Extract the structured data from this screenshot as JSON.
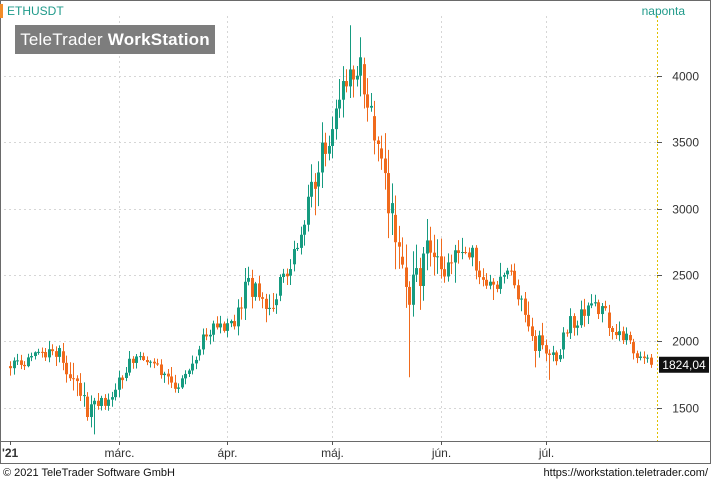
{
  "header": {
    "symbol": "ETHUSDT",
    "period": "naponta",
    "logo_regular": "TeleTrader",
    "logo_bold": "WorkStation"
  },
  "footer": {
    "copyright": "© 2021 TeleTrader Software GmbH",
    "url": "https://workstation.teletrader.com/"
  },
  "colors": {
    "up": "#169b80",
    "down": "#f06a1c",
    "grid": "#d6d6d6",
    "price_tag_bg": "#111111"
  },
  "chart_data": {
    "type": "candlestick",
    "title": "ETHUSDT",
    "interval": "naponta",
    "x_tick_labels": [
      "'21",
      "márc.",
      "ápr.",
      "máj.",
      "jún.",
      "júl."
    ],
    "y_ticks": [
      1500,
      2000,
      2500,
      3000,
      3500,
      4000
    ],
    "ylim": [
      1250,
      4450
    ],
    "last_price_label": "1824,04",
    "grid": true,
    "anchors": [
      [
        0,
        1770,
        1880
      ],
      [
        4,
        1800,
        1880
      ],
      [
        8,
        1880,
        1940
      ],
      [
        12,
        1810,
        1950
      ],
      [
        14,
        1870,
        1960
      ],
      [
        16,
        1740,
        1860
      ],
      [
        18,
        1580,
        1800
      ],
      [
        20,
        1480,
        1660
      ],
      [
        22,
        1400,
        1560
      ],
      [
        24,
        1460,
        1580
      ],
      [
        26,
        1510,
        1600
      ],
      [
        28,
        1490,
        1610
      ],
      [
        30,
        1580,
        1740
      ],
      [
        32,
        1700,
        1810
      ],
      [
        34,
        1780,
        1880
      ],
      [
        36,
        1840,
        1920
      ],
      [
        38,
        1840,
        1890
      ],
      [
        40,
        1800,
        1880
      ],
      [
        42,
        1760,
        1830
      ],
      [
        44,
        1720,
        1820
      ],
      [
        46,
        1600,
        1720
      ],
      [
        48,
        1630,
        1720
      ],
      [
        50,
        1700,
        1780
      ],
      [
        52,
        1790,
        1900
      ],
      [
        54,
        1910,
        2010
      ],
      [
        56,
        1990,
        2110
      ],
      [
        58,
        2060,
        2150
      ],
      [
        60,
        2040,
        2140
      ],
      [
        62,
        2080,
        2160
      ],
      [
        64,
        2100,
        2180
      ],
      [
        66,
        2160,
        2420
      ],
      [
        68,
        2300,
        2560
      ],
      [
        70,
        2340,
        2450
      ],
      [
        72,
        2280,
        2420
      ],
      [
        74,
        2100,
        2300
      ],
      [
        76,
        2300,
        2480
      ],
      [
        78,
        2430,
        2530
      ],
      [
        80,
        2520,
        2690
      ],
      [
        82,
        2680,
        2770
      ],
      [
        84,
        2740,
        2950
      ],
      [
        86,
        2930,
        3270
      ],
      [
        88,
        3220,
        3580
      ],
      [
        90,
        3400,
        3580
      ],
      [
        92,
        3480,
        3660
      ],
      [
        94,
        3650,
        3950
      ],
      [
        96,
        3800,
        4180
      ],
      [
        98,
        3900,
        4150
      ],
      [
        100,
        3900,
        4180
      ],
      [
        102,
        3700,
        3920
      ],
      [
        104,
        3420,
        3660
      ],
      [
        106,
        3200,
        3420
      ],
      [
        108,
        2800,
        3250
      ],
      [
        110,
        2550,
        2900
      ],
      [
        112,
        2350,
        2600
      ],
      [
        114,
        2050,
        2420
      ],
      [
        116,
        2300,
        2620
      ],
      [
        118,
        2440,
        2720
      ],
      [
        120,
        2620,
        2880
      ],
      [
        122,
        2440,
        2760
      ],
      [
        124,
        2320,
        2560
      ],
      [
        126,
        2380,
        2680
      ],
      [
        128,
        2620,
        2880
      ],
      [
        130,
        2660,
        2790
      ],
      [
        132,
        2580,
        2760
      ],
      [
        134,
        2460,
        2650
      ],
      [
        136,
        2380,
        2560
      ],
      [
        138,
        2300,
        2500
      ],
      [
        140,
        2420,
        2600
      ],
      [
        142,
        2520,
        2620
      ],
      [
        144,
        2360,
        2520
      ],
      [
        146,
        2220,
        2380
      ],
      [
        148,
        2100,
        2280
      ],
      [
        150,
        1890,
        2100
      ],
      [
        152,
        1920,
        2080
      ],
      [
        154,
        1860,
        2020
      ],
      [
        156,
        1810,
        1920
      ],
      [
        158,
        1960,
        2100
      ],
      [
        160,
        2080,
        2200
      ],
      [
        162,
        2100,
        2200
      ],
      [
        164,
        2180,
        2320
      ],
      [
        166,
        2200,
        2320
      ],
      [
        168,
        2180,
        2300
      ],
      [
        170,
        2130,
        2260
      ],
      [
        172,
        2040,
        2140
      ],
      [
        174,
        1990,
        2120
      ],
      [
        176,
        1940,
        2080
      ],
      [
        178,
        1880,
        1980
      ],
      [
        180,
        1860,
        1940
      ],
      [
        182,
        1840,
        1940
      ],
      [
        183,
        1824.04,
        1880
      ]
    ]
  }
}
